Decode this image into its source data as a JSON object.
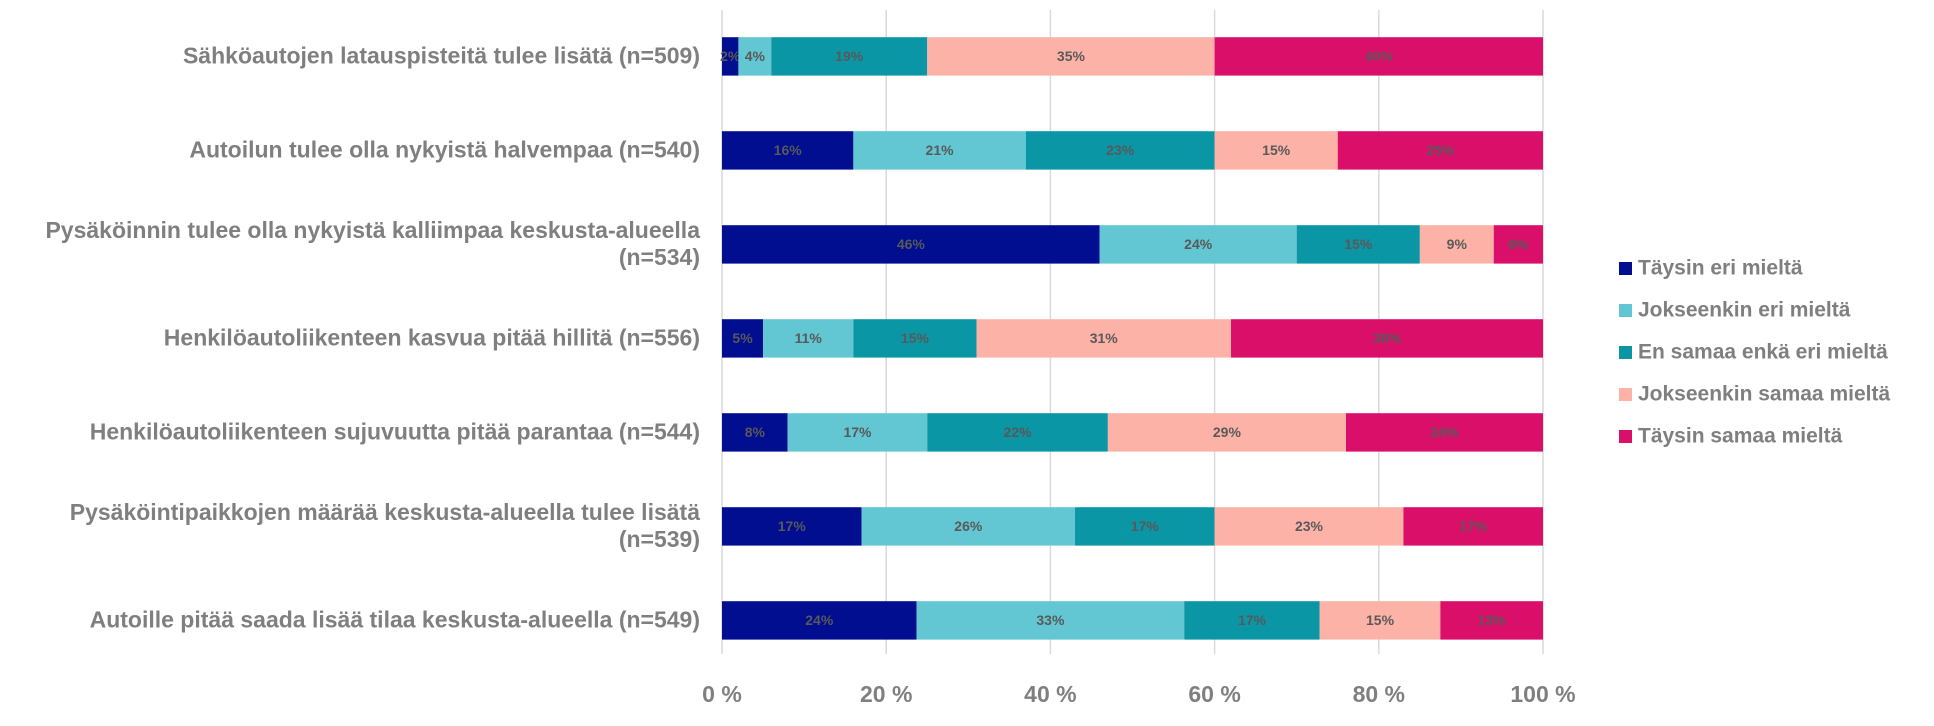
{
  "chart_data": {
    "type": "stacked_barh",
    "categories": [
      "Sähköautojen latauspisteitä tulee lisätä (n=509)",
      "Autoilun tulee olla nykyistä halvempaa (n=540)",
      "Pysäköinnin tulee olla nykyistä kalliimpaa keskusta-alueella (n=534)",
      "Henkilöautoliikenteen kasvua pitää hillitä (n=556)",
      "Henkilöautoliikenteen sujuvuutta pitää parantaa (n=544)",
      "Pysäköintipaikkojen määrää keskusta-alueella tulee lisätä (n=539)",
      "Autoille pitää saada lisää tilaa keskusta-alueella (n=549)"
    ],
    "series": [
      {
        "name": "Täysin eri mieltä",
        "color": "#000e8f",
        "values": [
          2,
          16,
          46,
          5,
          8,
          17,
          23.7
        ],
        "value_labels": [
          "2%",
          "16%",
          "46%",
          "5%",
          "8%",
          "17%",
          "24%"
        ]
      },
      {
        "name": "Jokseenkin eri mieltä",
        "color": "#62c7d3",
        "values": [
          4,
          21,
          24,
          11,
          17,
          26,
          32.6
        ],
        "value_labels": [
          "4%",
          "21%",
          "24%",
          "11%",
          "17%",
          "26%",
          "33%"
        ]
      },
      {
        "name": "En samaa enkä eri mieltä",
        "color": "#0a96a5",
        "values": [
          19,
          23,
          15,
          15,
          22,
          17,
          16.5
        ],
        "value_labels": [
          "19%",
          "23%",
          "15%",
          "15%",
          "22%",
          "17%",
          "17%"
        ]
      },
      {
        "name": "Jokseenkin samaa mieltä",
        "color": "#fdb2a8",
        "values": [
          35,
          15,
          9,
          31,
          29,
          23,
          14.7
        ],
        "value_labels": [
          "35%",
          "15%",
          "9%",
          "31%",
          "29%",
          "23%",
          "15%"
        ]
      },
      {
        "name": "Täysin samaa mieltä",
        "color": "#d90f6a",
        "values": [
          40,
          25,
          6,
          38,
          24,
          17,
          12.5
        ],
        "value_labels": [
          "40%",
          "25%",
          "6%",
          "38%",
          "24%",
          "17%",
          "13%"
        ]
      }
    ],
    "xlim": [
      0,
      100
    ],
    "xticks": [
      {
        "value": 0,
        "label": "0 %"
      },
      {
        "value": 20,
        "label": "20 %"
      },
      {
        "value": 40,
        "label": "40 %"
      },
      {
        "value": 60,
        "label": "60 %"
      },
      {
        "value": 80,
        "label": "80 %"
      },
      {
        "value": 100,
        "label": "100 %"
      }
    ],
    "grid": true,
    "legend": "right"
  }
}
